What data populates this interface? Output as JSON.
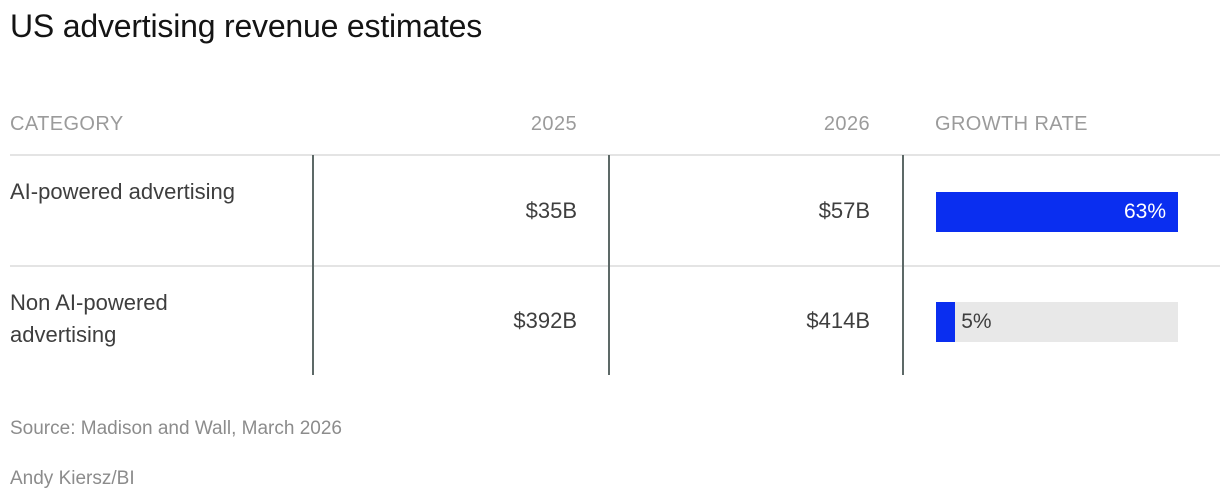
{
  "title": "US advertising revenue estimates",
  "table": {
    "headers": {
      "category": "CATEGORY",
      "col2025": "2025",
      "col2026": "2026",
      "growth": "GROWTH RATE"
    },
    "rows": [
      {
        "category": "AI-powered advertising",
        "v2025": "$35B",
        "v2026": "$57B",
        "growth_label": "63%",
        "growth_pct": 63
      },
      {
        "category": "Non AI-powered advertising",
        "v2025": "$392B",
        "v2026": "$414B",
        "growth_label": "5%",
        "growth_pct": 5
      }
    ]
  },
  "footer": {
    "source": "Source: Madison and Wall, March 2026",
    "credit": "Andy Kiersz/BI"
  },
  "colors": {
    "bar_blue": "#0a2ef0",
    "bar_track": "#e8e8e8",
    "vertical_rule": "#5d6967",
    "horizontal_rule": "#e4e4e4",
    "title_text": "#141414",
    "body_text": "#3e3e3e",
    "header_text": "#9b9b9b",
    "footer_text": "#8c8c8c"
  },
  "chart_data": {
    "type": "table",
    "title": "US advertising revenue estimates",
    "columns": [
      "CATEGORY",
      "2025",
      "2026",
      "GROWTH RATE"
    ],
    "rows": [
      [
        "AI-powered advertising",
        "$35B",
        "$57B",
        "63%"
      ],
      [
        "Non AI-powered advertising",
        "$392B",
        "$414B",
        "5%"
      ]
    ],
    "growth_bar_series": {
      "categories": [
        "AI-powered advertising",
        "Non AI-powered advertising"
      ],
      "values_pct": [
        63,
        5
      ]
    },
    "growth_bar_max_pct": 63,
    "source": "Source: Madison and Wall, March 2026",
    "credit": "Andy Kiersz/BI"
  }
}
